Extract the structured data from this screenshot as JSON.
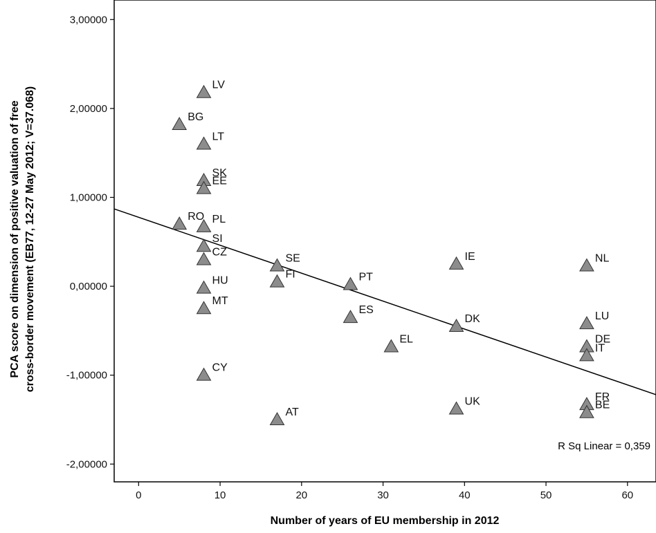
{
  "chart_data": {
    "type": "scatter",
    "xlabel": "Number of years of EU membership in 2012",
    "ylabel_line1": "PCA score on dimension of positive valuation of free",
    "ylabel_line2": "cross-border movement (EB77, 12-27 May 2012; V=37.068)",
    "xlim": [
      -3,
      63.5
    ],
    "ylim": [
      -2.2,
      3.22
    ],
    "x_ticks": [
      0,
      10,
      20,
      30,
      40,
      50,
      60
    ],
    "x_tick_labels": [
      "0",
      "10",
      "20",
      "30",
      "40",
      "50",
      "60"
    ],
    "y_ticks": [
      -2,
      -1,
      0,
      1,
      2,
      3
    ],
    "y_tick_labels": [
      "-2,00000",
      "-1,00000",
      "0,00000",
      "1,00000",
      "2,00000",
      "3,00000"
    ],
    "annotation": "R Sq Linear = 0,359",
    "marker": "triangle",
    "marker_color": "#8c8c8c",
    "fit_line": {
      "x": [
        -3,
        63.5
      ],
      "y": [
        0.87,
        -1.22
      ]
    },
    "points": [
      {
        "label": "LV",
        "x": 8,
        "y": 2.18
      },
      {
        "label": "BG",
        "x": 5,
        "y": 1.82
      },
      {
        "label": "LT",
        "x": 8,
        "y": 1.6
      },
      {
        "label": "SK",
        "x": 8,
        "y": 1.19
      },
      {
        "label": "EE",
        "x": 8,
        "y": 1.1
      },
      {
        "label": "RO",
        "x": 5,
        "y": 0.7
      },
      {
        "label": "PL",
        "x": 8,
        "y": 0.67
      },
      {
        "label": "SI",
        "x": 8,
        "y": 0.45
      },
      {
        "label": "CZ",
        "x": 8,
        "y": 0.3
      },
      {
        "label": "HU",
        "x": 8,
        "y": -0.02
      },
      {
        "label": "MT",
        "x": 8,
        "y": -0.25
      },
      {
        "label": "CY",
        "x": 8,
        "y": -1.0
      },
      {
        "label": "SE",
        "x": 17,
        "y": 0.23
      },
      {
        "label": "FI",
        "x": 17,
        "y": 0.05
      },
      {
        "label": "AT",
        "x": 17,
        "y": -1.5
      },
      {
        "label": "PT",
        "x": 26,
        "y": 0.02
      },
      {
        "label": "ES",
        "x": 26,
        "y": -0.35
      },
      {
        "label": "EL",
        "x": 31,
        "y": -0.68
      },
      {
        "label": "IE",
        "x": 39,
        "y": 0.25
      },
      {
        "label": "DK",
        "x": 39,
        "y": -0.45
      },
      {
        "label": "UK",
        "x": 39,
        "y": -1.38
      },
      {
        "label": "NL",
        "x": 55,
        "y": 0.23
      },
      {
        "label": "LU",
        "x": 55,
        "y": -0.42
      },
      {
        "label": "DE",
        "x": 55,
        "y": -0.68
      },
      {
        "label": "IT",
        "x": 55,
        "y": -0.78
      },
      {
        "label": "FR",
        "x": 55,
        "y": -1.33
      },
      {
        "label": "BE",
        "x": 55,
        "y": -1.42
      }
    ]
  }
}
